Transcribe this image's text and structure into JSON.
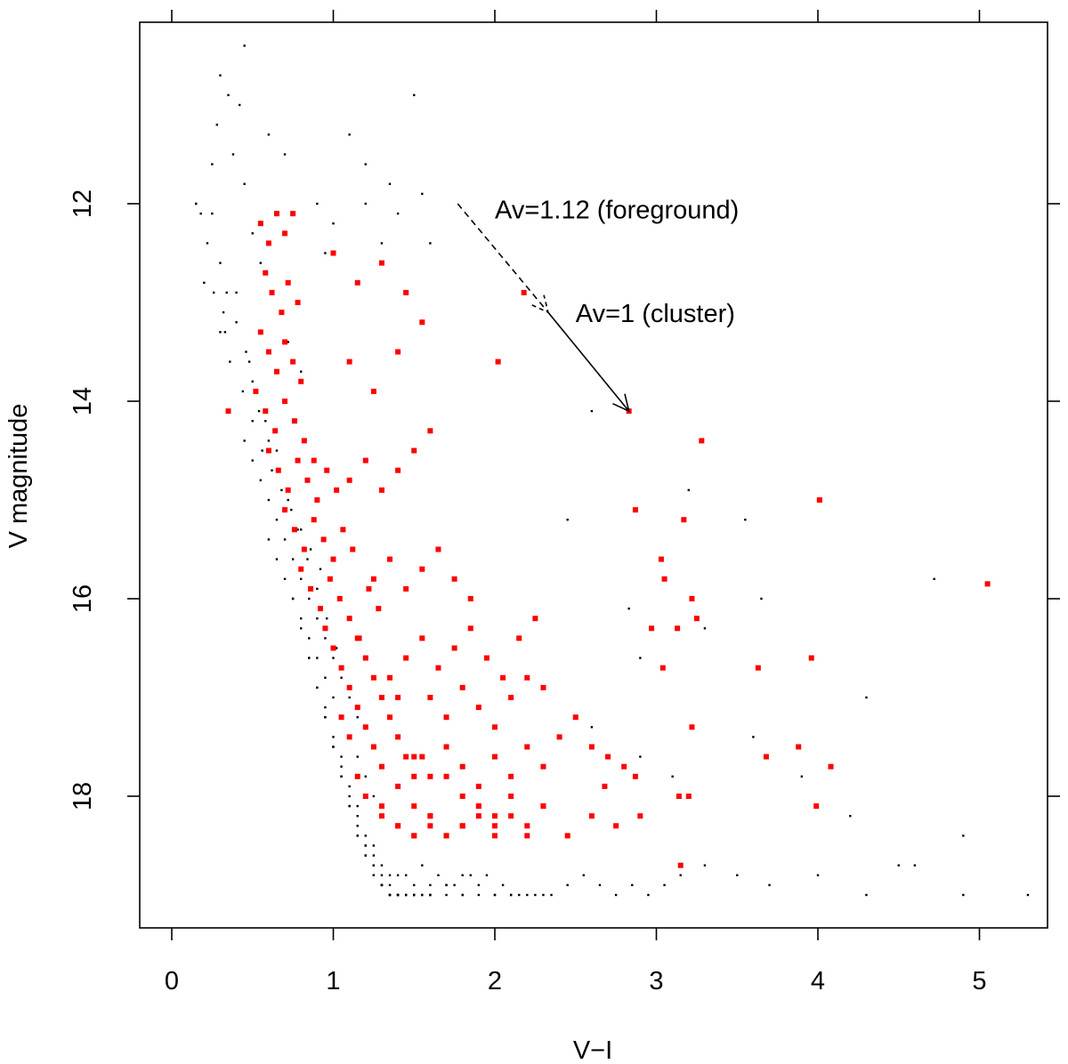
{
  "chart_data": {
    "type": "scatter",
    "title": "",
    "xlabel": "V−I",
    "ylabel": "V magnitude",
    "xlim": [
      -0.2,
      5.4
    ],
    "ylim": [
      19.6,
      10.35
    ],
    "y_inverted": true,
    "x_ticks": [
      "0",
      "1",
      "2",
      "3",
      "4",
      "5"
    ],
    "x_tick_values": [
      0,
      1,
      2,
      3,
      4,
      5
    ],
    "y_ticks": [
      "12",
      "14",
      "16",
      "18"
    ],
    "y_tick_values": [
      12,
      14,
      16,
      18
    ],
    "grid": false,
    "colors": {
      "background_stars": "#000000",
      "members": "#ff0000"
    },
    "annotations": [
      {
        "text": "Av=1.12 (foreground)",
        "x": 2.0,
        "y": 12.15
      },
      {
        "text": "Av=1 (cluster)",
        "x": 2.5,
        "y": 13.2
      }
    ],
    "vectors": [
      {
        "label": "Av=1.12 (foreground)",
        "style": "dashed",
        "from": [
          1.77,
          12.0
        ],
        "to": [
          2.33,
          13.1
        ]
      },
      {
        "label": "Av=1 (cluster)",
        "style": "solid",
        "from": [
          2.33,
          13.1
        ],
        "to": [
          2.83,
          14.1
        ]
      }
    ],
    "series": [
      {
        "marker": "dot",
        "x": [
          0.3,
          0.35,
          0.28,
          0.42,
          0.38,
          0.45,
          0.25,
          0.5,
          0.55,
          0.4,
          0.32,
          0.6,
          0.7,
          0.22,
          0.2,
          0.33,
          0.48,
          0.52,
          0.58,
          0.65,
          0.72,
          0.8,
          0.9,
          1.0,
          1.1,
          1.2,
          1.3,
          0.95,
          1.55,
          1.5,
          1.35,
          0.18,
          0.15,
          0.26,
          0.3,
          0.36,
          0.44,
          0.5,
          0.56,
          0.62,
          0.68,
          0.74,
          0.8,
          0.86,
          0.92,
          0.3,
          0.34,
          0.4,
          0.46,
          0.5,
          0.54,
          0.6,
          0.66,
          0.72,
          0.78,
          0.84,
          0.9,
          0.96,
          1.02,
          0.45,
          0.5,
          0.55,
          0.6,
          0.65,
          0.7,
          0.75,
          0.8,
          0.85,
          0.9,
          0.95,
          1.0,
          1.05,
          1.1,
          1.15,
          0.6,
          0.65,
          0.7,
          0.75,
          0.8,
          0.85,
          0.9,
          0.95,
          1.0,
          1.05,
          1.1,
          1.15,
          1.2,
          1.25,
          1.3,
          0.75,
          0.8,
          0.85,
          0.9,
          0.95,
          1.0,
          1.05,
          1.1,
          1.15,
          1.2,
          1.25,
          1.3,
          1.35,
          1.4,
          0.85,
          0.9,
          0.95,
          1.0,
          1.05,
          1.1,
          1.15,
          1.2,
          1.25,
          1.3,
          1.35,
          1.4,
          1.45,
          1.5,
          0.95,
          1.0,
          1.05,
          1.1,
          1.15,
          1.2,
          1.25,
          1.3,
          1.35,
          1.4,
          1.45,
          1.5,
          1.55,
          1.6,
          1.05,
          1.1,
          1.15,
          1.2,
          1.25,
          1.3,
          1.35,
          1.4,
          1.45,
          1.5,
          1.55,
          1.6,
          1.7,
          1.8,
          1.15,
          1.2,
          1.25,
          1.3,
          1.35,
          1.4,
          1.5,
          1.6,
          1.7,
          1.8,
          1.9,
          2.0,
          2.1,
          1.25,
          1.3,
          1.4,
          1.5,
          1.6,
          1.7,
          1.8,
          1.9,
          2.0,
          2.1,
          2.2,
          2.3,
          1.35,
          1.45,
          1.55,
          1.65,
          1.75,
          1.85,
          1.95,
          2.05,
          2.15,
          2.25,
          2.35,
          2.45,
          2.55,
          2.65,
          2.75,
          2.85,
          2.95,
          3.05,
          3.15,
          3.3,
          3.5,
          3.7,
          4.0,
          4.3,
          4.6,
          4.9,
          5.3,
          1.2,
          1.4,
          1.6,
          2.9,
          3.1,
          3.6,
          3.9,
          4.2,
          4.5,
          4.9,
          2.6,
          3.2,
          3.65,
          4.3,
          4.72,
          2.45,
          2.9,
          3.55,
          2.6,
          2.83,
          3.3,
          0.15,
          0.25,
          0.45
        ],
        "y": [
          10.7,
          10.9,
          11.2,
          11.0,
          11.5,
          11.8,
          12.1,
          12.3,
          12.6,
          12.9,
          13.1,
          11.3,
          11.5,
          12.4,
          12.8,
          13.3,
          13.6,
          13.9,
          14.2,
          14.5,
          13.4,
          13.7,
          12.0,
          12.2,
          11.3,
          11.6,
          12.4,
          12.5,
          11.9,
          10.9,
          11.8,
          12.1,
          12.0,
          12.9,
          13.3,
          13.6,
          13.9,
          14.2,
          14.5,
          14.7,
          14.9,
          15.1,
          15.3,
          15.5,
          15.7,
          12.6,
          12.9,
          13.2,
          13.5,
          13.8,
          14.1,
          14.4,
          14.7,
          15.0,
          15.3,
          15.6,
          15.9,
          16.2,
          16.5,
          14.4,
          14.6,
          14.8,
          15.0,
          15.2,
          15.4,
          15.6,
          15.8,
          16.0,
          16.2,
          16.4,
          16.6,
          16.8,
          17.0,
          17.2,
          15.4,
          15.6,
          15.8,
          16.0,
          16.2,
          16.4,
          16.6,
          16.8,
          17.0,
          17.2,
          17.4,
          17.6,
          17.8,
          18.0,
          18.2,
          16.0,
          16.3,
          16.6,
          16.9,
          17.2,
          17.5,
          17.8,
          18.1,
          18.4,
          18.6,
          18.8,
          18.9,
          19.0,
          19.0,
          16.6,
          16.9,
          17.2,
          17.5,
          17.8,
          18.1,
          18.4,
          18.6,
          18.8,
          18.9,
          19.0,
          19.0,
          19.0,
          19.0,
          17.1,
          17.4,
          17.7,
          18.0,
          18.3,
          18.5,
          18.7,
          18.9,
          19.0,
          19.0,
          19.0,
          19.0,
          19.0,
          19.0,
          17.6,
          17.9,
          18.2,
          18.5,
          18.7,
          18.9,
          19.0,
          19.0,
          19.0,
          19.0,
          19.0,
          19.0,
          19.0,
          19.0,
          18.1,
          18.4,
          18.6,
          18.8,
          18.9,
          19.0,
          19.0,
          18.9,
          18.9,
          19.0,
          19.0,
          19.0,
          19.0,
          18.5,
          18.7,
          18.8,
          18.9,
          19.0,
          18.9,
          18.8,
          18.9,
          19.0,
          19.0,
          19.0,
          19.0,
          18.8,
          18.8,
          18.7,
          18.8,
          18.9,
          18.8,
          18.8,
          18.9,
          19.0,
          19.0,
          19.0,
          18.9,
          18.8,
          18.9,
          19.0,
          18.9,
          19.0,
          18.9,
          18.8,
          18.7,
          18.8,
          18.9,
          18.8,
          19.0,
          18.7,
          19.0,
          19.0,
          12.0,
          12.1,
          12.4,
          17.6,
          17.8,
          17.4,
          17.8,
          18.2,
          18.7,
          18.4,
          14.1,
          14.9,
          16.0,
          17.0,
          15.8,
          15.2,
          16.6,
          15.2,
          17.3,
          16.1,
          16.3,
          12.0,
          11.6,
          10.4
        ]
      },
      {
        "marker": "square",
        "x": [
          0.55,
          0.6,
          0.65,
          0.7,
          0.75,
          0.58,
          0.62,
          0.68,
          0.72,
          0.78,
          0.55,
          0.6,
          0.65,
          0.7,
          0.75,
          0.8,
          0.52,
          0.58,
          0.64,
          0.7,
          0.76,
          0.82,
          0.88,
          0.6,
          0.66,
          0.72,
          0.78,
          0.84,
          0.9,
          0.96,
          1.02,
          0.7,
          0.76,
          0.82,
          0.88,
          0.94,
          1.0,
          1.06,
          1.12,
          0.8,
          0.86,
          0.92,
          0.98,
          1.04,
          1.1,
          1.16,
          1.22,
          1.28,
          0.95,
          1.0,
          1.05,
          1.1,
          1.15,
          1.2,
          1.25,
          1.3,
          1.35,
          1.4,
          1.05,
          1.1,
          1.15,
          1.2,
          1.25,
          1.3,
          1.35,
          1.4,
          1.45,
          1.5,
          1.55,
          1.15,
          1.2,
          1.3,
          1.4,
          1.5,
          1.6,
          1.7,
          1.8,
          1.9,
          2.0,
          1.3,
          1.4,
          1.5,
          1.6,
          1.7,
          1.8,
          1.9,
          2.0,
          2.1,
          2.2,
          1.4,
          1.5,
          1.6,
          1.7,
          1.8,
          1.9,
          2.0,
          2.1,
          2.2,
          2.3,
          1.5,
          1.6,
          1.7,
          1.8,
          1.9,
          2.0,
          2.1,
          2.2,
          2.3,
          2.4,
          1.6,
          1.7,
          1.8,
          1.9,
          2.0,
          2.1,
          2.2,
          2.3,
          2.5,
          2.6,
          1.45,
          1.55,
          1.65,
          1.75,
          1.85,
          1.95,
          2.05,
          2.15,
          2.25,
          1.25,
          1.35,
          1.45,
          1.55,
          1.65,
          1.75,
          1.85,
          1.1,
          1.2,
          1.3,
          1.4,
          1.5,
          1.6,
          1.1,
          1.25,
          1.4,
          1.55,
          1.0,
          1.15,
          1.3,
          1.45,
          0.35,
          2.18,
          2.02,
          2.83,
          3.28,
          2.87,
          3.03,
          3.05,
          3.22,
          3.17,
          3.25,
          2.97,
          3.04,
          3.13,
          3.63,
          3.96,
          3.68,
          3.88,
          4.08,
          3.14,
          3.2,
          3.22,
          3.99,
          4.01,
          5.05,
          3.15,
          2.3,
          2.7,
          2.8,
          2.87,
          2.6,
          2.45,
          2.68,
          2.75,
          2.9
        ],
        "y": [
          12.2,
          12.4,
          12.1,
          12.3,
          12.1,
          12.7,
          12.9,
          13.1,
          12.8,
          13.0,
          13.3,
          13.5,
          13.7,
          13.4,
          13.6,
          13.8,
          13.9,
          14.1,
          14.3,
          14.0,
          14.2,
          14.4,
          14.6,
          14.5,
          14.7,
          14.9,
          14.6,
          14.8,
          15.0,
          14.7,
          14.9,
          15.1,
          15.3,
          15.5,
          15.2,
          15.4,
          15.6,
          15.3,
          15.5,
          15.7,
          15.9,
          16.1,
          15.8,
          16.0,
          16.2,
          16.4,
          15.9,
          16.1,
          16.3,
          16.5,
          16.7,
          16.9,
          16.4,
          16.6,
          16.8,
          17.0,
          16.8,
          17.0,
          17.2,
          17.4,
          17.1,
          17.3,
          17.5,
          17.7,
          17.2,
          17.4,
          17.6,
          17.8,
          17.6,
          17.8,
          18.0,
          18.2,
          17.9,
          18.1,
          18.3,
          17.8,
          18.0,
          18.2,
          18.4,
          18.1,
          18.3,
          18.4,
          18.2,
          18.4,
          18.3,
          18.1,
          18.2,
          18.0,
          18.3,
          18.3,
          18.4,
          18.2,
          18.4,
          18.3,
          18.1,
          18.3,
          18.2,
          18.4,
          18.1,
          17.6,
          17.8,
          17.5,
          17.7,
          17.9,
          17.6,
          17.8,
          17.5,
          17.7,
          17.4,
          17.0,
          17.2,
          16.9,
          17.1,
          17.3,
          17.0,
          16.8,
          16.9,
          17.2,
          17.5,
          16.6,
          16.4,
          16.7,
          16.5,
          16.3,
          16.6,
          16.8,
          16.4,
          16.2,
          15.8,
          15.6,
          15.9,
          15.7,
          15.5,
          15.8,
          16.0,
          14.8,
          14.6,
          14.9,
          14.7,
          14.5,
          14.3,
          13.6,
          13.9,
          13.5,
          13.2,
          12.5,
          12.8,
          12.6,
          12.9,
          14.1,
          12.9,
          13.6,
          14.1,
          14.4,
          15.1,
          15.6,
          15.8,
          16.0,
          15.2,
          16.2,
          16.3,
          16.7,
          16.3,
          16.7,
          16.6,
          17.6,
          17.5,
          17.7,
          18.0,
          18.0,
          17.3,
          18.1,
          15.0,
          15.85,
          18.7,
          18.1,
          17.6,
          17.7,
          17.8,
          18.2,
          18.4,
          17.9,
          18.3,
          18.2
        ]
      }
    ]
  }
}
